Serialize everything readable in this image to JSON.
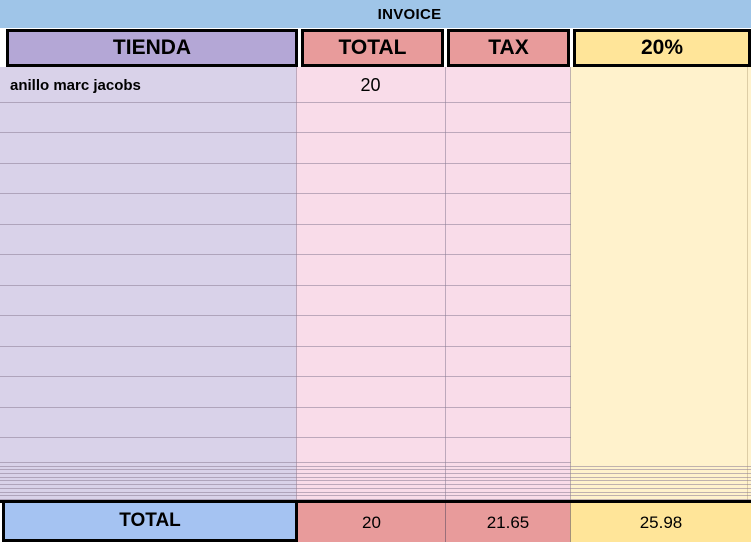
{
  "app": {
    "title": "INVOICE"
  },
  "colors": {
    "banner_blue": "#9FC5E8",
    "header_purple": "#B4A7D6",
    "header_red": "#E89B9B",
    "header_yellow": "#FFE599",
    "body_purple": "#D9D2E9",
    "body_pink": "#F9DCE9",
    "body_yellow": "#FFF2CC",
    "footer_blue": "#A5C3F2",
    "border_black": "#000000"
  },
  "table": {
    "columns": [
      {
        "id": "tienda",
        "label": "TIENDA"
      },
      {
        "id": "total",
        "label": "TOTAL"
      },
      {
        "id": "tax",
        "label": "TAX"
      },
      {
        "id": "pct",
        "label": "20%"
      }
    ],
    "rows": [
      {
        "tienda": "anillo marc jacobs",
        "total": "20",
        "tax": "",
        "pct": ""
      }
    ],
    "empty_row_count": 12,
    "thin_row_count": 10,
    "footer": {
      "label": "TOTAL",
      "total": "20",
      "tax": "21.65",
      "pct": "25.98"
    }
  }
}
